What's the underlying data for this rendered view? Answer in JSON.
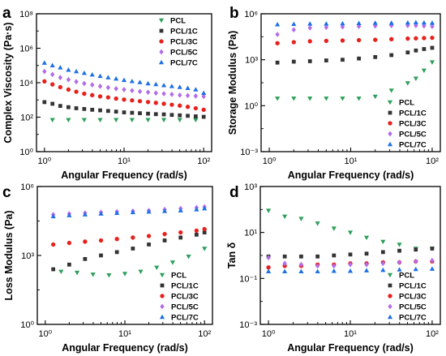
{
  "series_styles": [
    {
      "name": "PCL",
      "color": "#2ca05a",
      "marker": "triangle-down"
    },
    {
      "name": "PCL/1C",
      "color": "#333333",
      "marker": "square"
    },
    {
      "name": "PCL/3C",
      "color": "#e8201c",
      "marker": "circle"
    },
    {
      "name": "PCL/5C",
      "color": "#b36bea",
      "marker": "diamond"
    },
    {
      "name": "PCL/7C",
      "color": "#1c6fe8",
      "marker": "triangle-up"
    }
  ],
  "chart_data": [
    {
      "panel_label": "a",
      "type": "scatter",
      "xlabel": "Angular Frequency (rad/s)",
      "ylabel": "Complex Viscosity (Pa·s)",
      "xscale": "log",
      "yscale": "log",
      "xlim": [
        1,
        100
      ],
      "ylim": [
        1,
        100000000
      ],
      "xticks": [
        1,
        10,
        100
      ],
      "xtick_labels": [
        "10⁰",
        "10¹",
        "10²"
      ],
      "yticks": [
        1,
        100,
        10000,
        1000000,
        100000000
      ],
      "ytick_labels": [
        "10⁰",
        "10²",
        "10⁴",
        "10⁶",
        "10⁸"
      ],
      "legend": "top-right",
      "x": [
        1,
        1.26,
        1.58,
        2,
        2.51,
        3.16,
        3.98,
        5.01,
        6.31,
        7.94,
        10,
        12.6,
        15.8,
        20,
        25.1,
        31.6,
        39.8,
        50.1,
        63.1,
        79.4,
        100
      ],
      "series": [
        {
          "name": "PCL",
          "values": [
            null,
            70,
            null,
            70,
            null,
            70,
            null,
            70,
            null,
            70,
            null,
            70,
            null,
            70,
            null,
            70,
            null,
            70,
            null,
            70,
            null
          ]
        },
        {
          "name": "PCL/1C",
          "values": [
            750,
            600,
            450,
            380,
            330,
            300,
            270,
            250,
            230,
            210,
            190,
            180,
            170,
            160,
            150,
            145,
            135,
            128,
            120,
            112,
            105
          ]
        },
        {
          "name": "PCL/3C",
          "values": [
            12000,
            8000,
            5500,
            4000,
            3000,
            2300,
            1900,
            1600,
            1400,
            1200,
            1050,
            950,
            850,
            760,
            680,
            600,
            530,
            470,
            400,
            330,
            270
          ]
        },
        {
          "name": "PCL/5C",
          "values": [
            45000,
            30000,
            20000,
            15000,
            11500,
            9000,
            7500,
            6200,
            5200,
            4500,
            4000,
            3500,
            3100,
            2800,
            2500,
            2300,
            2100,
            1900,
            1800,
            1700,
            1600
          ]
        },
        {
          "name": "PCL/7C",
          "values": [
            140000,
            100000,
            75000,
            55000,
            45000,
            36000,
            29000,
            24000,
            20000,
            17000,
            14000,
            12000,
            10500,
            9000,
            8000,
            7000,
            6200,
            5500,
            4800,
            4000,
            2500
          ]
        }
      ]
    },
    {
      "panel_label": "b",
      "type": "scatter",
      "xlabel": "Angular Frequency (rad/s)",
      "ylabel": "Storage Modulus (Pa)",
      "xscale": "log",
      "yscale": "log",
      "xlim": [
        1,
        100
      ],
      "ylim": [
        0.001,
        1000000
      ],
      "xticks": [
        1,
        10,
        100
      ],
      "xtick_labels": [
        "10⁰",
        "10¹",
        "10²"
      ],
      "yticks": [
        0.001,
        1,
        1000,
        1000000
      ],
      "ytick_labels": [
        "10⁻³",
        "10⁰",
        "10³",
        "10⁶"
      ],
      "legend": "bottom-right",
      "x": [
        1.26,
        2,
        3.16,
        5.01,
        7.94,
        12.6,
        20,
        31.6,
        50.1,
        63.1,
        79.4,
        100
      ],
      "series": [
        {
          "name": "PCL",
          "values": [
            3,
            3,
            3,
            3,
            3,
            3,
            4,
            10,
            30,
            60,
            200,
            700
          ]
        },
        {
          "name": "PCL/1C",
          "values": [
            650,
            750,
            800,
            900,
            1000,
            1200,
            1500,
            2000,
            3000,
            4000,
            5000,
            6000
          ]
        },
        {
          "name": "PCL/3C",
          "values": [
            12000,
            14000,
            16000,
            17000,
            18000,
            19000,
            20000,
            22000,
            24000,
            25000,
            26000,
            27000
          ]
        },
        {
          "name": "PCL/5C",
          "values": [
            45000,
            90000,
            120000,
            130000,
            140000,
            150000,
            160000,
            170000,
            170000,
            170000,
            160000,
            150000
          ]
        },
        {
          "name": "PCL/7C",
          "values": [
            200000,
            210000,
            220000,
            220000,
            230000,
            240000,
            250000,
            250000,
            260000,
            270000,
            260000,
            250000
          ]
        }
      ]
    },
    {
      "panel_label": "c",
      "type": "scatter",
      "xlabel": "Angular Frequency (rad/s)",
      "ylabel": "Loss Modulus (Pa)",
      "xscale": "log",
      "yscale": "log",
      "xlim": [
        1,
        100
      ],
      "ylim": [
        1,
        1000000
      ],
      "xticks": [
        1,
        10,
        100
      ],
      "xtick_labels": [
        "10⁰",
        "10¹",
        "10²"
      ],
      "yticks": [
        1,
        1000,
        1000000
      ],
      "ytick_labels": [
        "10⁰",
        "10³",
        "10⁶"
      ],
      "legend": "bottom-right",
      "x": [
        1.26,
        1.58,
        2,
        2.51,
        3.16,
        3.98,
        5.01,
        6.31,
        7.94,
        10,
        12.6,
        15.8,
        20,
        25.1,
        31.6,
        39.8,
        50.1,
        63.1,
        79.4,
        100
      ],
      "series": [
        {
          "name": "PCL",
          "values": [
            null,
            200,
            null,
            180,
            null,
            150,
            null,
            140,
            null,
            160,
            null,
            200,
            null,
            300,
            null,
            500,
            null,
            900,
            null,
            2000
          ]
        },
        {
          "name": "PCL/1C",
          "values": [
            250,
            null,
            400,
            null,
            700,
            null,
            1000,
            null,
            1400,
            null,
            2000,
            null,
            3000,
            null,
            4500,
            null,
            6000,
            null,
            8000,
            10000
          ]
        },
        {
          "name": "PCL/3C",
          "values": [
            3000,
            null,
            3500,
            null,
            4000,
            null,
            4500,
            null,
            5200,
            null,
            6000,
            null,
            7000,
            null,
            8500,
            null,
            10000,
            null,
            12000,
            14000
          ]
        },
        {
          "name": "PCL/5C",
          "values": [
            60000,
            null,
            65000,
            null,
            70000,
            null,
            75000,
            null,
            80000,
            null,
            85000,
            null,
            90000,
            null,
            100000,
            null,
            110000,
            null,
            120000,
            130000
          ]
        },
        {
          "name": "PCL/7C",
          "values": [
            50000,
            null,
            55000,
            null,
            60000,
            null,
            65000,
            null,
            70000,
            null,
            75000,
            null,
            80000,
            null,
            85000,
            null,
            90000,
            null,
            100000,
            110000
          ]
        }
      ]
    },
    {
      "panel_label": "d",
      "type": "scatter",
      "xlabel": "Angular Frequency (rad/s)",
      "ylabel": "Tan δ",
      "xscale": "log",
      "yscale": "log",
      "xlim": [
        1,
        100
      ],
      "ylim": [
        0.001,
        1000
      ],
      "xticks": [
        1,
        10,
        100
      ],
      "xtick_labels": [
        "10⁰",
        "10¹",
        "10²"
      ],
      "yticks": [
        0.001,
        0.1,
        10,
        1000
      ],
      "ytick_labels": [
        "10⁻³",
        "10⁻¹",
        "10¹",
        "10³"
      ],
      "legend": "bottom-right",
      "x": [
        1,
        1.26,
        1.58,
        2,
        2.51,
        3.16,
        3.98,
        5.01,
        6.31,
        7.94,
        10,
        12.6,
        15.8,
        20,
        25.1,
        31.6,
        39.8,
        50.1,
        63.1,
        79.4,
        100
      ],
      "series": [
        {
          "name": "PCL",
          "values": [
            90,
            null,
            50,
            null,
            40,
            null,
            25,
            null,
            15,
            null,
            10,
            null,
            6,
            null,
            4,
            null,
            3,
            null,
            2,
            null,
            2
          ]
        },
        {
          "name": "PCL/1C",
          "values": [
            0.9,
            null,
            0.9,
            null,
            0.9,
            null,
            0.9,
            null,
            1,
            null,
            1.1,
            null,
            1.2,
            null,
            1.4,
            null,
            1.6,
            null,
            1.8,
            null,
            2
          ]
        },
        {
          "name": "PCL/3C",
          "values": [
            0.3,
            null,
            0.35,
            null,
            0.35,
            null,
            0.4,
            null,
            0.4,
            null,
            0.45,
            null,
            0.45,
            null,
            0.5,
            null,
            0.5,
            null,
            0.55,
            null,
            0.55
          ]
        },
        {
          "name": "PCL/5C",
          "values": [
            0.8,
            null,
            0.45,
            null,
            0.4,
            null,
            0.35,
            null,
            0.35,
            null,
            0.4,
            null,
            0.4,
            null,
            0.45,
            null,
            0.5,
            null,
            0.55,
            null,
            0.6
          ]
        },
        {
          "name": "PCL/7C",
          "values": [
            0.2,
            null,
            0.2,
            null,
            0.2,
            null,
            0.2,
            null,
            0.21,
            null,
            0.21,
            null,
            0.22,
            null,
            0.23,
            null,
            0.24,
            null,
            0.25,
            null,
            0.26
          ]
        }
      ]
    }
  ]
}
